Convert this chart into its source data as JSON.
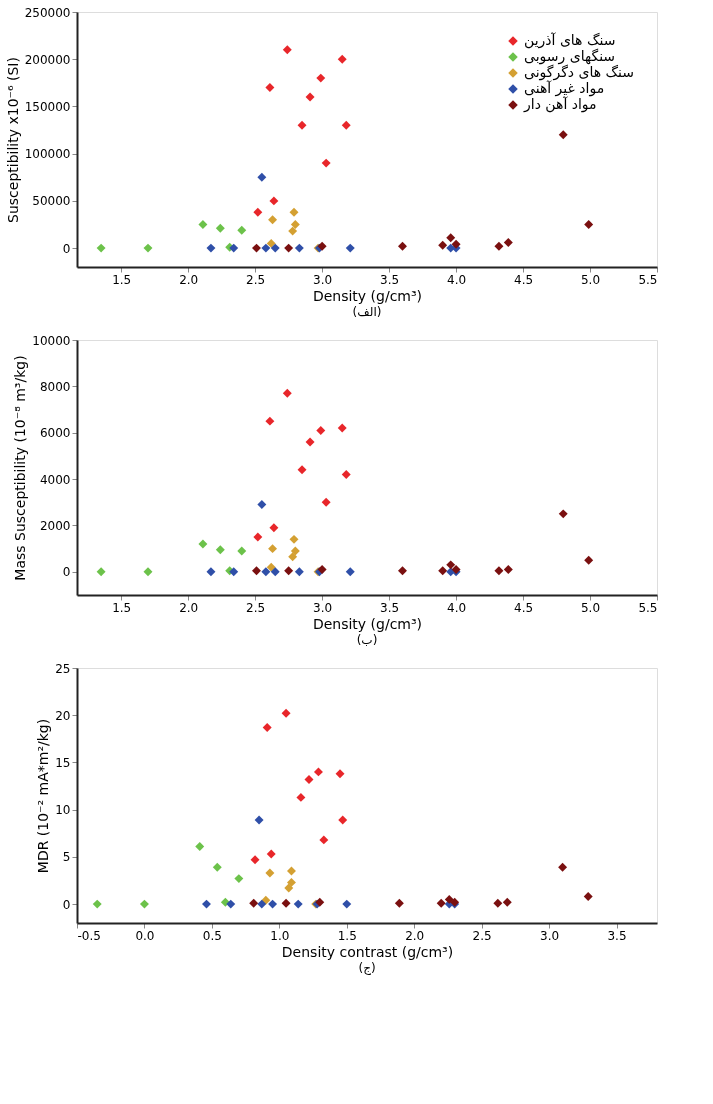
{
  "chart_data": [
    {
      "type": "scatter",
      "xlabel": "Density (g/cm³)",
      "ylabel": "Susceptibility x10⁻⁶ (SI)",
      "annotations": [
        "(الف)"
      ],
      "marker": "diamond",
      "legend": "top right",
      "grid": false,
      "xlim": [
        1.17,
        5.5
      ],
      "xticks": [
        1.5,
        {
          "value": 2,
          "label": "2.0"
        },
        2.5,
        {
          "value": 3,
          "label": "3.0"
        },
        3.5,
        {
          "value": 4,
          "label": "4.0"
        },
        4.5,
        {
          "value": 5,
          "label": "5.0"
        },
        5.5
      ],
      "ylim": [
        -20000,
        250000
      ],
      "yticks": [
        0,
        50000,
        100000,
        150000,
        200000,
        250000
      ],
      "series": [
        {
          "name": "سنگ های آذرین",
          "color": "#e8262a",
          "x": [
            2.52,
            2.61,
            2.64,
            2.74,
            2.85,
            2.91,
            2.99,
            3.03,
            3.15,
            3.18
          ],
          "values": [
            38000,
            170000,
            50000,
            210000,
            130000,
            160000,
            180000,
            90000,
            200000,
            130000
          ]
        },
        {
          "name": "سنگهای رسوبی",
          "color": "#6cc24a",
          "x": [
            1.35,
            1.7,
            2.11,
            2.24,
            2.31,
            2.4
          ],
          "values": [
            0,
            0,
            25000,
            21000,
            1000,
            19000
          ]
        },
        {
          "name": "سنگ های دگرگونی",
          "color": "#d4a032",
          "x": [
            2.63,
            2.62,
            2.78,
            2.8,
            2.79,
            2.97
          ],
          "values": [
            30000,
            5000,
            18000,
            25000,
            38000,
            0
          ]
        },
        {
          "name": "مواد غیر آهنی",
          "color": "#2f4fa8",
          "x": [
            2.17,
            2.34,
            2.55,
            2.58,
            2.65,
            2.83,
            2.98,
            3.21,
            3.96,
            4.0
          ],
          "values": [
            0,
            0,
            75000,
            0,
            0,
            0,
            0,
            0,
            0,
            0
          ]
        },
        {
          "name": "مواد آهن دار",
          "color": "#7a1010",
          "x": [
            2.51,
            2.75,
            3.0,
            3.6,
            3.9,
            3.96,
            4.0,
            4.32,
            4.39,
            4.8,
            4.99
          ],
          "values": [
            0,
            0,
            2000,
            2000,
            3000,
            11000,
            4000,
            2000,
            6000,
            120000,
            25000
          ]
        }
      ]
    },
    {
      "type": "scatter",
      "xlabel": "Density (g/cm³)",
      "ylabel": "Mass Susceptibility (10⁻⁸ m³/kg)",
      "annotations": [
        "(ب)"
      ],
      "marker": "diamond",
      "legend": "top right",
      "grid": false,
      "xlim": [
        1.17,
        5.5
      ],
      "xticks": [
        1.5,
        {
          "value": 2,
          "label": "2.0"
        },
        2.5,
        {
          "value": 3,
          "label": "3.0"
        },
        3.5,
        {
          "value": 4,
          "label": "4.0"
        },
        4.5,
        {
          "value": 5,
          "label": "5.0"
        },
        5.5
      ],
      "ylim": [
        -1000,
        10000
      ],
      "yticks": [
        0,
        2000,
        4000,
        6000,
        8000,
        10000
      ],
      "series": [
        {
          "name": "سنگ های آذرین",
          "color": "#e8262a",
          "x": [
            2.52,
            2.61,
            2.64,
            2.74,
            2.85,
            2.91,
            2.99,
            3.03,
            3.15,
            3.18
          ],
          "values": [
            1500,
            6500,
            1900,
            7700,
            4400,
            5600,
            6100,
            3000,
            6200,
            4200
          ]
        },
        {
          "name": "سنگهای رسوبی",
          "color": "#6cc24a",
          "x": [
            1.35,
            1.7,
            2.11,
            2.24,
            2.31,
            2.4
          ],
          "values": [
            0,
            0,
            1200,
            950,
            50,
            900
          ]
        },
        {
          "name": "سنگ های دگرگونی",
          "color": "#d4a032",
          "x": [
            2.63,
            2.62,
            2.78,
            2.8,
            2.79,
            2.97
          ],
          "values": [
            1000,
            200,
            650,
            900,
            1400,
            0
          ]
        },
        {
          "name": "مواد غیر آهنی",
          "color": "#2f4fa8",
          "x": [
            2.17,
            2.34,
            2.55,
            2.58,
            2.65,
            2.83,
            2.98,
            3.21,
            3.96,
            4.0
          ],
          "values": [
            0,
            0,
            2900,
            0,
            0,
            0,
            0,
            0,
            0,
            0
          ]
        },
        {
          "name": "مواد آهن دار",
          "color": "#7a1010",
          "x": [
            2.51,
            2.75,
            3.0,
            3.6,
            3.9,
            3.96,
            4.0,
            4.32,
            4.39,
            4.8,
            4.99
          ],
          "values": [
            50,
            50,
            100,
            50,
            50,
            300,
            100,
            50,
            100,
            2500,
            500
          ]
        }
      ]
    },
    {
      "type": "scatter",
      "xlabel": "Density contrast (g/cm³)",
      "ylabel": "MDR (10⁻² mA*m²/kg)",
      "annotations": [
        "(ج)"
      ],
      "marker": "diamond",
      "legend": "top right",
      "grid": false,
      "xlim": [
        -0.5,
        3.8
      ],
      "xticks": [
        -0.5,
        {
          "value": 0,
          "label": "0.0"
        },
        0.5,
        {
          "value": 1,
          "label": "1.0"
        },
        1.5,
        {
          "value": 2,
          "label": "2.0"
        },
        2.5,
        {
          "value": 3,
          "label": "3.0"
        },
        3.5
      ],
      "ylim": [
        -2,
        25
      ],
      "yticks": [
        0,
        5,
        10,
        15,
        20,
        25
      ],
      "series": [
        {
          "name": "سنگ های آذرین",
          "color": "#e8262a",
          "x": [
            0.82,
            0.91,
            0.94,
            1.05,
            1.16,
            1.22,
            1.29,
            1.33,
            1.45,
            1.47
          ],
          "values": [
            4.7,
            18.7,
            5.3,
            20.2,
            11.3,
            13.2,
            14,
            6.8,
            13.8,
            8.9
          ]
        },
        {
          "name": "سنگهای رسوبی",
          "color": "#6cc24a",
          "x": [
            -0.35,
            0.0,
            0.41,
            0.54,
            0.6,
            0.7
          ],
          "values": [
            0,
            0,
            6.1,
            3.9,
            0.2,
            2.7
          ]
        },
        {
          "name": "سنگ های دگرگونی",
          "color": "#d4a032",
          "x": [
            0.93,
            0.9,
            1.07,
            1.09,
            1.09,
            1.27
          ],
          "values": [
            3.3,
            0.4,
            1.7,
            2.3,
            3.5,
            0
          ]
        },
        {
          "name": "مواد غیر آهنی",
          "color": "#2f4fa8",
          "x": [
            0.46,
            0.64,
            0.85,
            0.87,
            0.95,
            1.14,
            1.28,
            1.5,
            2.26,
            2.3
          ],
          "values": [
            0,
            0,
            8.9,
            0,
            0,
            0,
            0,
            0,
            0,
            0
          ]
        },
        {
          "name": "مواد آهن دار",
          "color": "#7a1010",
          "x": [
            0.81,
            1.05,
            1.3,
            1.89,
            2.2,
            2.26,
            2.3,
            2.62,
            2.69,
            3.1,
            3.29
          ],
          "values": [
            0.1,
            0.1,
            0.2,
            0.1,
            0.1,
            0.5,
            0.2,
            0.1,
            0.2,
            3.9,
            0.8
          ]
        }
      ]
    }
  ]
}
